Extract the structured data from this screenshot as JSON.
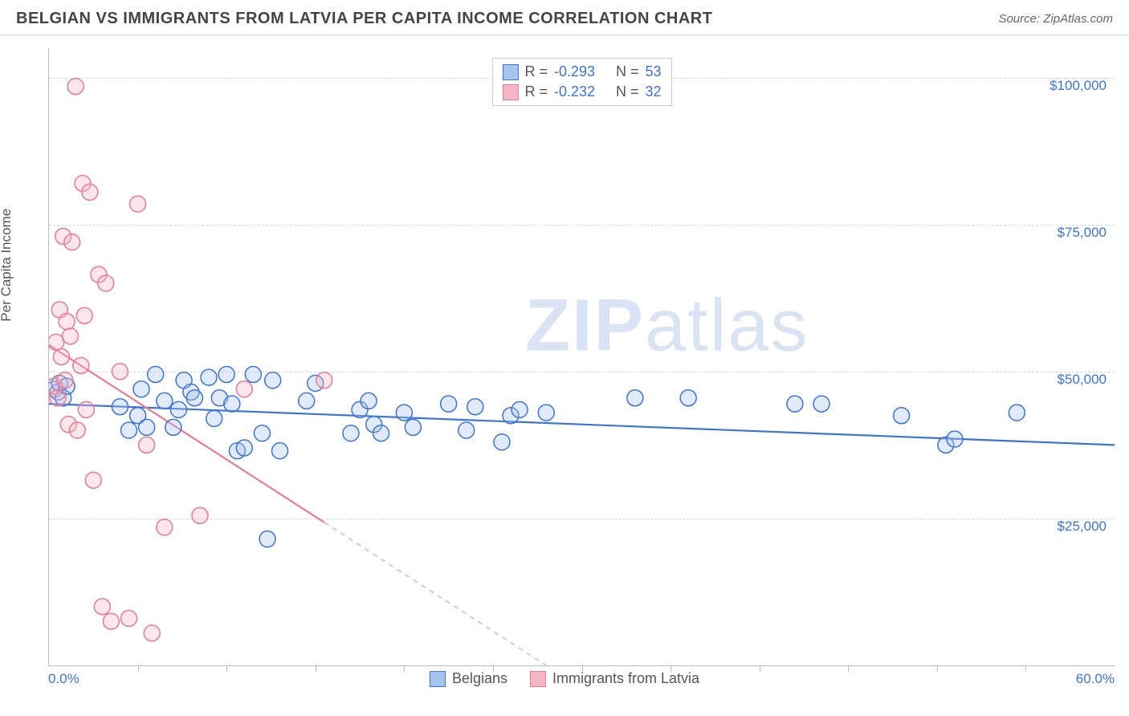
{
  "header": {
    "title": "BELGIAN VS IMMIGRANTS FROM LATVIA PER CAPITA INCOME CORRELATION CHART",
    "source": "Source: ZipAtlas.com"
  },
  "watermark": {
    "bold": "ZIP",
    "light": "atlas"
  },
  "chart": {
    "type": "scatter",
    "ylabel": "Per Capita Income",
    "xlim": [
      0,
      60
    ],
    "ylim": [
      0,
      105000
    ],
    "x_axis_labels": {
      "min": "0.0%",
      "max": "60.0%"
    },
    "x_ticks_count": 12,
    "y_gridlines": [
      25000,
      50000,
      75000,
      100000
    ],
    "y_tick_labels": [
      "$25,000",
      "$50,000",
      "$75,000",
      "$100,000"
    ],
    "background_color": "#ffffff",
    "grid_color": "#d8d8d8",
    "axis_color": "#bbbbbb",
    "label_color": "#3b74d6",
    "text_color": "#555555",
    "marker_radius": 10,
    "marker_fill_opacity": 0.35,
    "marker_stroke_width": 1.5,
    "trend_line_width": 2.2,
    "series": [
      {
        "name": "Belgians",
        "color_stroke": "#3b74d6",
        "color_fill": "#a8c4ec",
        "R": "-0.293",
        "N": "53",
        "trend": {
          "x1": 0,
          "y1": 44500,
          "x2": 60,
          "y2": 37500,
          "dash_from_x": null
        },
        "points": [
          [
            0.3,
            47000
          ],
          [
            0.5,
            46500
          ],
          [
            0.6,
            48000
          ],
          [
            0.8,
            45500
          ],
          [
            1.0,
            47500
          ],
          [
            4.0,
            44000
          ],
          [
            4.5,
            40000
          ],
          [
            5.0,
            42500
          ],
          [
            5.2,
            47000
          ],
          [
            5.5,
            40500
          ],
          [
            6.0,
            49500
          ],
          [
            6.5,
            45000
          ],
          [
            7.0,
            40500
          ],
          [
            7.3,
            43500
          ],
          [
            7.6,
            48500
          ],
          [
            8.0,
            46500
          ],
          [
            8.2,
            45500
          ],
          [
            9.0,
            49000
          ],
          [
            9.3,
            42000
          ],
          [
            9.6,
            45500
          ],
          [
            10.0,
            49500
          ],
          [
            10.3,
            44500
          ],
          [
            10.6,
            36500
          ],
          [
            11.0,
            37000
          ],
          [
            11.5,
            49500
          ],
          [
            12.0,
            39500
          ],
          [
            12.3,
            21500
          ],
          [
            12.6,
            48500
          ],
          [
            13.0,
            36500
          ],
          [
            14.5,
            45000
          ],
          [
            15.0,
            48000
          ],
          [
            17.0,
            39500
          ],
          [
            17.5,
            43500
          ],
          [
            18.0,
            45000
          ],
          [
            18.3,
            41000
          ],
          [
            18.7,
            39500
          ],
          [
            20.0,
            43000
          ],
          [
            20.5,
            40500
          ],
          [
            22.5,
            44500
          ],
          [
            23.5,
            40000
          ],
          [
            24.0,
            44000
          ],
          [
            25.5,
            38000
          ],
          [
            26.0,
            42500
          ],
          [
            26.5,
            43500
          ],
          [
            28.0,
            43000
          ],
          [
            33.0,
            45500
          ],
          [
            36.0,
            45500
          ],
          [
            42.0,
            44500
          ],
          [
            43.5,
            44500
          ],
          [
            48.0,
            42500
          ],
          [
            50.5,
            37500
          ],
          [
            51.0,
            38500
          ],
          [
            54.5,
            43000
          ]
        ]
      },
      {
        "name": "Immigrants from Latvia",
        "color_stroke": "#e77a95",
        "color_fill": "#f4b6c5",
        "R": "-0.232",
        "N": "32",
        "trend": {
          "x1": 0,
          "y1": 54500,
          "x2": 28,
          "y2": 0,
          "dash_from_x": 15.5
        },
        "points": [
          [
            0.3,
            47500
          ],
          [
            0.4,
            55000
          ],
          [
            0.5,
            45500
          ],
          [
            0.6,
            60500
          ],
          [
            0.7,
            52500
          ],
          [
            0.8,
            73000
          ],
          [
            0.9,
            48500
          ],
          [
            1.0,
            58500
          ],
          [
            1.1,
            41000
          ],
          [
            1.2,
            56000
          ],
          [
            1.3,
            72000
          ],
          [
            1.5,
            98500
          ],
          [
            1.6,
            40000
          ],
          [
            1.8,
            51000
          ],
          [
            1.9,
            82000
          ],
          [
            2.0,
            59500
          ],
          [
            2.1,
            43500
          ],
          [
            2.3,
            80500
          ],
          [
            2.5,
            31500
          ],
          [
            2.8,
            66500
          ],
          [
            3.0,
            10000
          ],
          [
            3.2,
            65000
          ],
          [
            3.5,
            7500
          ],
          [
            4.0,
            50000
          ],
          [
            4.5,
            8000
          ],
          [
            5.0,
            78500
          ],
          [
            5.5,
            37500
          ],
          [
            5.8,
            5500
          ],
          [
            6.5,
            23500
          ],
          [
            8.5,
            25500
          ],
          [
            11.0,
            47000
          ],
          [
            15.5,
            48500
          ]
        ]
      }
    ]
  }
}
